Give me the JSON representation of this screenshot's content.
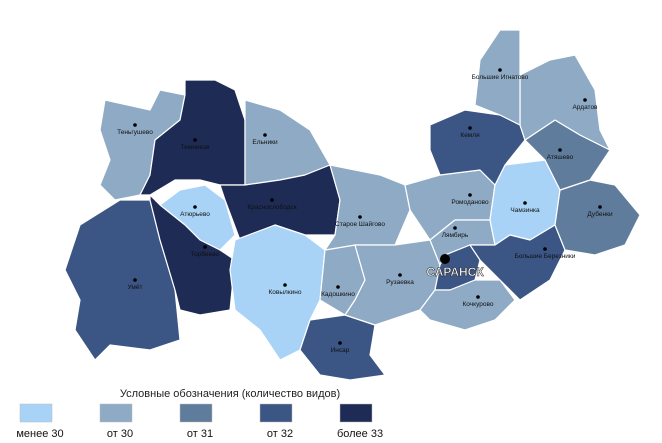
{
  "legend": {
    "title": "Условные обозначения (количество видов)",
    "items": [
      {
        "label": "менее 30",
        "color": "#a8d3f6"
      },
      {
        "label": "от 30",
        "color": "#8eaac4"
      },
      {
        "label": "от 31",
        "color": "#607c9c"
      },
      {
        "label": "от 32",
        "color": "#3b5584"
      },
      {
        "label": "более 33",
        "color": "#1d2b55"
      }
    ]
  },
  "districts": [
    {
      "name": "Теньгушево",
      "color": "#8eaac4"
    },
    {
      "name": "Темников",
      "color": "#1d2b55"
    },
    {
      "name": "Ельники",
      "color": "#8eaac4"
    },
    {
      "name": "Атюрьево",
      "color": "#a8d3f6"
    },
    {
      "name": "Краснослободск",
      "color": "#1d2b55"
    },
    {
      "name": "Умёт",
      "color": "#3b5584"
    },
    {
      "name": "Торбеево",
      "color": "#1d2b55"
    },
    {
      "name": "Ковылкино",
      "color": "#a8d3f6"
    },
    {
      "name": "Кадошкино",
      "color": "#8eaac4"
    },
    {
      "name": "Инсар",
      "color": "#3b5584"
    },
    {
      "name": "Старое Шайгово",
      "color": "#8eaac4"
    },
    {
      "name": "Рузаевка",
      "color": "#8eaac4"
    },
    {
      "name": "Ромоданово",
      "color": "#8eaac4"
    },
    {
      "name": "Лямбирь",
      "color": "#8eaac4"
    },
    {
      "name": "САРАНСК",
      "color": "#3b5584"
    },
    {
      "name": "Кочкурово",
      "color": "#8eaac4"
    },
    {
      "name": "Чамзинка",
      "color": "#a8d3f6"
    },
    {
      "name": "Большие Березники",
      "color": "#3b5584"
    },
    {
      "name": "Дубенки",
      "color": "#607c9c"
    },
    {
      "name": "Атяшево",
      "color": "#607c9c"
    },
    {
      "name": "Кемля",
      "color": "#3b5584"
    },
    {
      "name": "Ардатов",
      "color": "#8eaac4"
    },
    {
      "name": "Большие Игнатово",
      "color": "#8eaac4"
    }
  ]
}
